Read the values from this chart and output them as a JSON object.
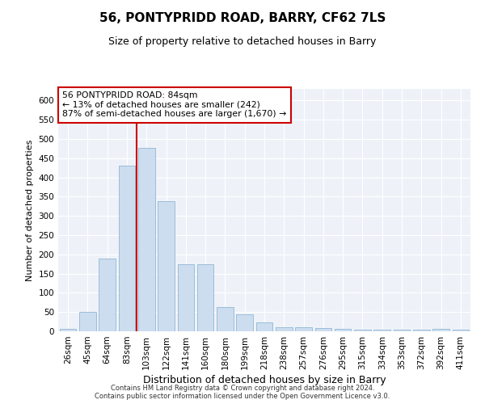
{
  "title": "56, PONTYPRIDD ROAD, BARRY, CF62 7LS",
  "subtitle": "Size of property relative to detached houses in Barry",
  "xlabel": "Distribution of detached houses by size in Barry",
  "ylabel": "Number of detached properties",
  "bar_color": "#ccddf0",
  "bar_edge_color": "#9bbdd8",
  "background_color": "#eef2f8",
  "grid_color": "#ffffff",
  "categories": [
    "26sqm",
    "45sqm",
    "64sqm",
    "83sqm",
    "103sqm",
    "122sqm",
    "141sqm",
    "160sqm",
    "180sqm",
    "199sqm",
    "218sqm",
    "238sqm",
    "257sqm",
    "276sqm",
    "295sqm",
    "315sqm",
    "334sqm",
    "353sqm",
    "372sqm",
    "392sqm",
    "411sqm"
  ],
  "values": [
    6,
    50,
    188,
    430,
    477,
    338,
    174,
    174,
    62,
    45,
    24,
    11,
    11,
    8,
    7,
    5,
    4,
    5,
    4,
    6,
    4
  ],
  "ylim": [
    0,
    630
  ],
  "yticks": [
    0,
    50,
    100,
    150,
    200,
    250,
    300,
    350,
    400,
    450,
    500,
    550,
    600
  ],
  "property_line_index": 3,
  "annotation_line1": "56 PONTYPRIDD ROAD: 84sqm",
  "annotation_line2": "← 13% of detached houses are smaller (242)",
  "annotation_line3": "87% of semi-detached houses are larger (1,670) →",
  "annotation_box_color": "#cc0000",
  "title_fontsize": 11,
  "subtitle_fontsize": 9,
  "ylabel_fontsize": 8,
  "xlabel_fontsize": 9,
  "tick_fontsize": 7.5,
  "footer_line1": "Contains HM Land Registry data © Crown copyright and database right 2024.",
  "footer_line2": "Contains public sector information licensed under the Open Government Licence v3.0."
}
